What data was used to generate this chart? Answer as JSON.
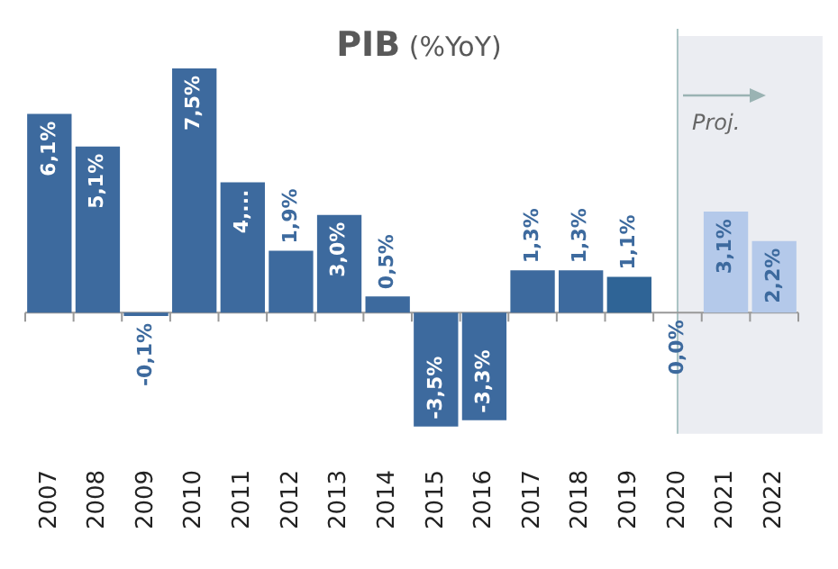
{
  "chart_data": {
    "type": "bar",
    "title": "PIB (%YoY)",
    "categories": [
      "2007",
      "2008",
      "2009",
      "2010",
      "2011",
      "2012",
      "2013",
      "2014",
      "2015",
      "2016",
      "2017",
      "2018",
      "2019",
      "2020",
      "2021",
      "2022"
    ],
    "values": [
      6.1,
      5.1,
      -0.1,
      7.5,
      4.0,
      1.9,
      3.0,
      0.5,
      -3.5,
      -3.3,
      1.3,
      1.3,
      1.1,
      0.0,
      3.1,
      2.2
    ],
    "colors": [
      "#3d6a9e",
      "#3d6a9e",
      "#3d6a9e",
      "#3d6a9e",
      "#3d6a9e",
      "#3d6a9e",
      "#3d6a9e",
      "#3d6a9e",
      "#3d6a9e",
      "#3d6a9e",
      "#3d6a9e",
      "#3d6a9e",
      "#2f6496",
      "#3d6a9e",
      "#b4c9ea",
      "#b4c9ea"
    ],
    "value_labels": [
      "6,1%",
      "5,1%",
      "-0,1%",
      "7,5%",
      "4,...",
      "1,9%",
      "3,0%",
      "0,5%",
      "-3,5%",
      "-3,3%",
      "1,3%",
      "1,3%",
      "1,1%",
      "0,0%",
      "3,1%",
      "2,2%"
    ],
    "bands": [
      {
        "axis": "x",
        "from": "2020",
        "to": "2022",
        "label": "Proj.",
        "color": "#ebedf2"
      }
    ]
  }
}
